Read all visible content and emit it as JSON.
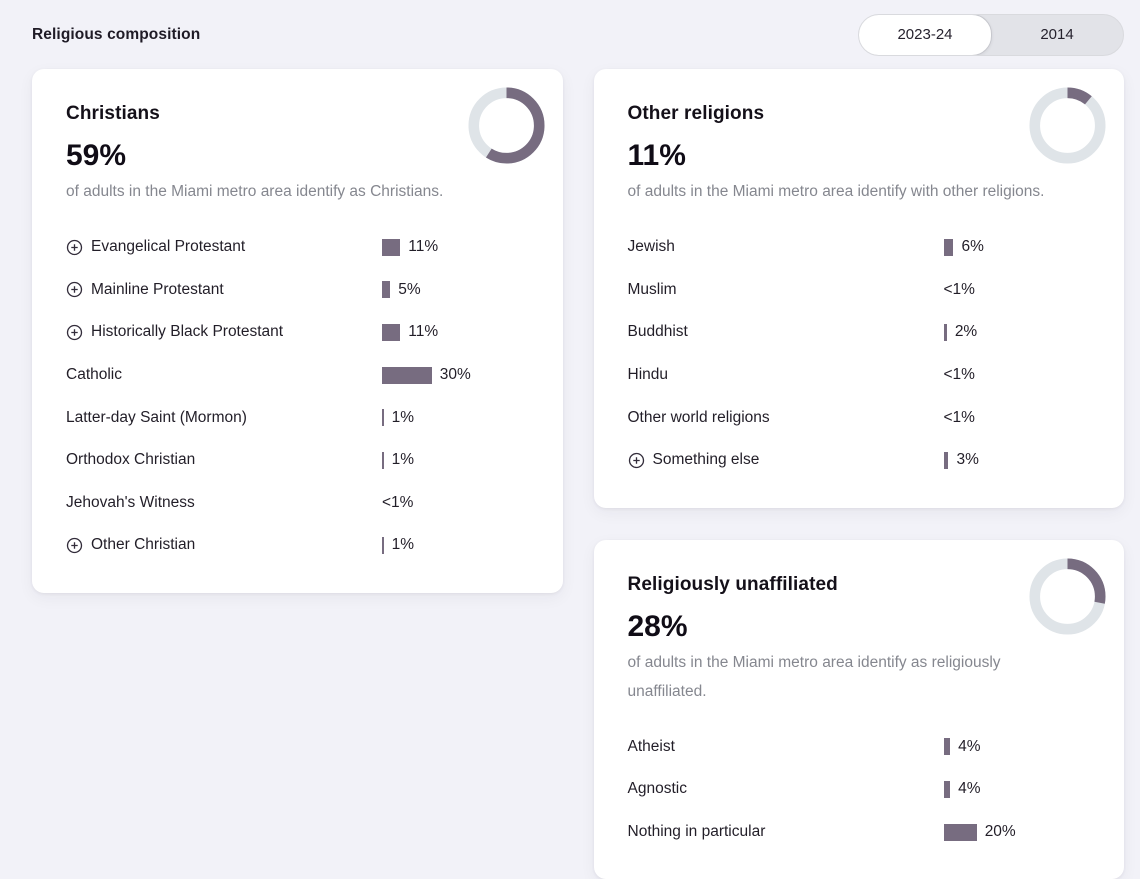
{
  "header": {
    "title": "Religious composition"
  },
  "toggle": {
    "options": [
      "2023-24",
      "2014"
    ],
    "selected": "2023-24"
  },
  "colors": {
    "accent": "#776c80",
    "donut_track": "#dfe4e8",
    "page_bg": "#f2f2f8",
    "card_bg": "#ffffff"
  },
  "cards": [
    {
      "id": "christians",
      "title": "Christians",
      "pct_label": "59%",
      "pct": 59,
      "description": "of adults in the Miami metro area identify as Christians.",
      "rows": [
        {
          "label": "Evangelical Protestant",
          "value": "11%",
          "pct": 11,
          "expandable": true
        },
        {
          "label": "Mainline Protestant",
          "value": "5%",
          "pct": 5,
          "expandable": true
        },
        {
          "label": "Historically Black Protestant",
          "value": "11%",
          "pct": 11,
          "expandable": true
        },
        {
          "label": "Catholic",
          "value": "30%",
          "pct": 30,
          "expandable": false
        },
        {
          "label": "Latter-day Saint (Mormon)",
          "value": "1%",
          "pct": 1,
          "expandable": false
        },
        {
          "label": "Orthodox Christian",
          "value": "1%",
          "pct": 1,
          "expandable": false
        },
        {
          "label": "Jehovah's Witness",
          "value": "<1%",
          "pct": 0,
          "expandable": false
        },
        {
          "label": "Other Christian",
          "value": "1%",
          "pct": 1,
          "expandable": true
        }
      ]
    },
    {
      "id": "other-religions",
      "title": "Other religions",
      "pct_label": "11%",
      "pct": 11,
      "description": "of adults in the Miami metro area identify with other religions.",
      "rows": [
        {
          "label": "Jewish",
          "value": "6%",
          "pct": 6,
          "expandable": false
        },
        {
          "label": "Muslim",
          "value": "<1%",
          "pct": 0,
          "expandable": false
        },
        {
          "label": "Buddhist",
          "value": "2%",
          "pct": 2,
          "expandable": false
        },
        {
          "label": "Hindu",
          "value": "<1%",
          "pct": 0,
          "expandable": false
        },
        {
          "label": "Other world religions",
          "value": "<1%",
          "pct": 0,
          "expandable": false
        },
        {
          "label": "Something else",
          "value": "3%",
          "pct": 3,
          "expandable": true
        }
      ]
    },
    {
      "id": "religiously-unaffiliated",
      "title": "Religiously unaffiliated",
      "pct_label": "28%",
      "pct": 28,
      "description": "of adults in the Miami metro area identify as religiously unaffiliated.",
      "rows": [
        {
          "label": "Atheist",
          "value": "4%",
          "pct": 4,
          "expandable": false
        },
        {
          "label": "Agnostic",
          "value": "4%",
          "pct": 4,
          "expandable": false
        },
        {
          "label": "Nothing in particular",
          "value": "20%",
          "pct": 20,
          "expandable": false
        }
      ]
    }
  ],
  "chart_data": [
    {
      "type": "pie",
      "title": "Christians",
      "donut_pct": 59,
      "subtitle": "of adults in the Miami metro area identify as Christians.",
      "bars": {
        "type": "bar",
        "categories": [
          "Evangelical Protestant",
          "Mainline Protestant",
          "Historically Black Protestant",
          "Catholic",
          "Latter-day Saint (Mormon)",
          "Orthodox Christian",
          "Jehovah's Witness",
          "Other Christian"
        ],
        "values": [
          11,
          5,
          11,
          30,
          1,
          1,
          0.5,
          1
        ],
        "value_labels": [
          "11%",
          "5%",
          "11%",
          "30%",
          "1%",
          "1%",
          "<1%",
          "1%"
        ]
      }
    },
    {
      "type": "pie",
      "title": "Other religions",
      "donut_pct": 11,
      "subtitle": "of adults in the Miami metro area identify with other religions.",
      "bars": {
        "type": "bar",
        "categories": [
          "Jewish",
          "Muslim",
          "Buddhist",
          "Hindu",
          "Other world religions",
          "Something else"
        ],
        "values": [
          6,
          0.5,
          2,
          0.5,
          0.5,
          3
        ],
        "value_labels": [
          "6%",
          "<1%",
          "2%",
          "<1%",
          "<1%",
          "3%"
        ]
      }
    },
    {
      "type": "pie",
      "title": "Religiously unaffiliated",
      "donut_pct": 28,
      "subtitle": "of adults in the Miami metro area identify as religiously unaffiliated.",
      "bars": {
        "type": "bar",
        "categories": [
          "Atheist",
          "Agnostic",
          "Nothing in particular"
        ],
        "values": [
          4,
          4,
          20
        ],
        "value_labels": [
          "4%",
          "4%",
          "20%"
        ]
      }
    }
  ]
}
